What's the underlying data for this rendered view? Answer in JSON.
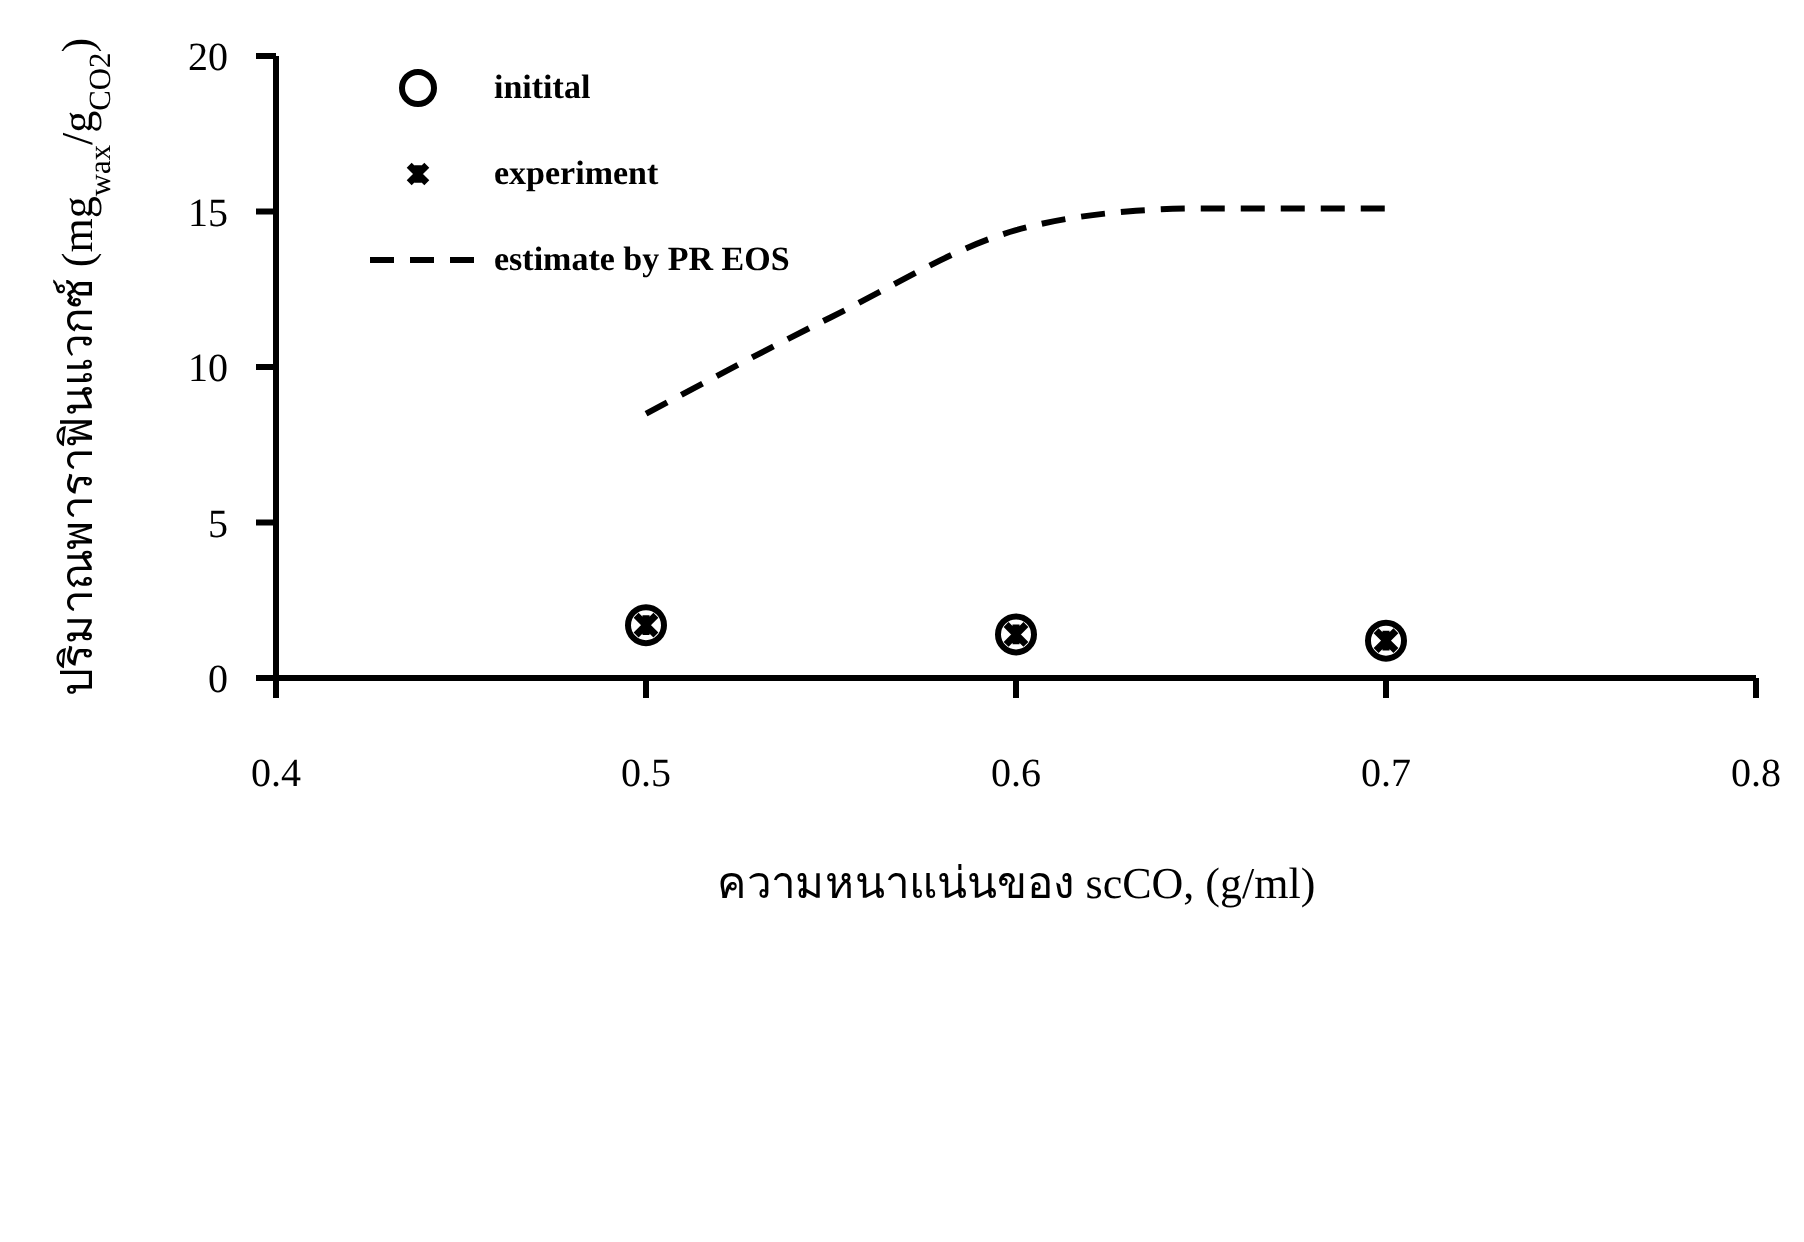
{
  "chart_data": {
    "type": "scatter",
    "xlabel": "ความหนาแน่นของ scCO, (g/ml)",
    "ylabel": "ปริมาณพาราฟินแวกซ์ (mg$_{wax}$/g$_{CO2}$)",
    "xlim": [
      0.4,
      0.8
    ],
    "xticks": [
      0.4,
      0.5,
      0.6,
      0.7,
      0.8
    ],
    "ylim": [
      0,
      20
    ],
    "yticks": [
      0,
      5,
      10,
      15,
      20
    ],
    "grid": false,
    "legend": "top left",
    "series": [
      {
        "name": "initital",
        "type": "scatter",
        "marker": "circle",
        "color": "#000000",
        "x": [
          0.5,
          0.6,
          0.7
        ],
        "values": [
          1.7,
          1.4,
          1.2
        ]
      },
      {
        "name": "experiment",
        "type": "scatter",
        "marker": "cross",
        "color": "#000000",
        "x": [
          0.5,
          0.6,
          0.7
        ],
        "values": [
          1.7,
          1.4,
          1.2
        ]
      },
      {
        "name": "estimate by PR EOS",
        "type": "line",
        "marker": "none",
        "line_style": "dashed",
        "color": "#000000",
        "x": [
          0.5,
          0.55,
          0.6,
          0.63,
          0.65,
          0.7
        ],
        "values": [
          8.5,
          11.6,
          14.4,
          15.0,
          15.1,
          15.1
        ]
      }
    ]
  }
}
